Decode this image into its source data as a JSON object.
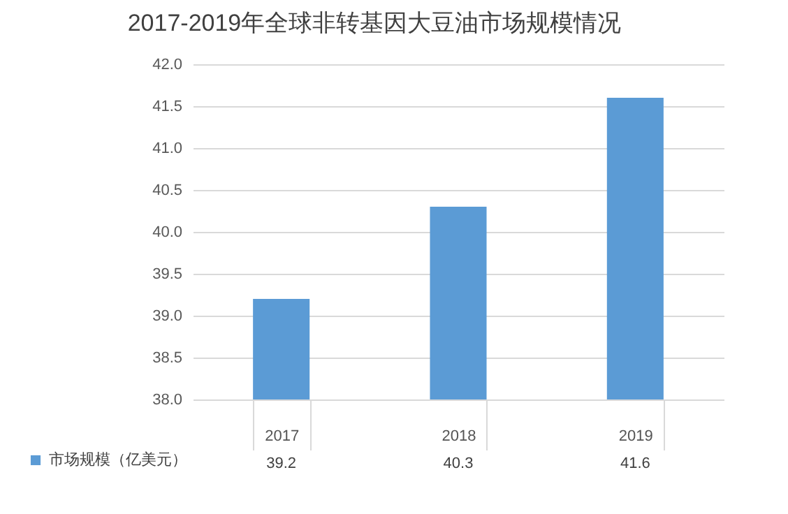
{
  "chart_data": {
    "type": "bar",
    "title": "2017-2019年全球非转基因大豆油市场规模情况",
    "categories": [
      "2017",
      "2018",
      "2019"
    ],
    "series": [
      {
        "name": "市场规模（亿美元）",
        "color": "#5b9bd5",
        "values": [
          39.2,
          40.3,
          41.6
        ]
      }
    ],
    "ylim": [
      38,
      42
    ],
    "yticks": [
      {
        "value": 38,
        "label": "38.0"
      },
      {
        "value": 38.5,
        "label": "38.5"
      },
      {
        "value": 39,
        "label": "39.0"
      },
      {
        "value": 39.5,
        "label": "39.5"
      },
      {
        "value": 40,
        "label": "40.0"
      },
      {
        "value": 40.5,
        "label": "40.5"
      },
      {
        "value": 41,
        "label": "41.0"
      },
      {
        "value": 41.5,
        "label": "41.5"
      },
      {
        "value": 42,
        "label": "42.0"
      }
    ],
    "grid": "y",
    "legend": "bottom left",
    "data_labels": true
  }
}
